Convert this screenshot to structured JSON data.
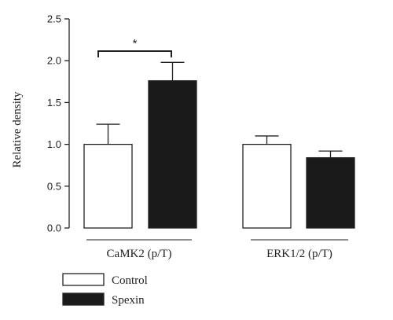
{
  "chart_data": {
    "type": "bar",
    "categories": [
      "CaMK2 (p/T)",
      "ERK1/2 (p/T)"
    ],
    "series": [
      {
        "name": "Control",
        "values": [
          1.0,
          1.0
        ],
        "errors": [
          0.24,
          0.1
        ],
        "color": "#ffffff"
      },
      {
        "name": "Spexin",
        "values": [
          1.76,
          0.84
        ],
        "errors": [
          0.22,
          0.08
        ],
        "color": "#1a1a1a"
      }
    ],
    "xlabel": "",
    "ylabel": "Relative density",
    "ylim": [
      0,
      2.5
    ],
    "yticks": [
      "0.0",
      "0.5",
      "1.0",
      "1.5",
      "2.0",
      "2.5"
    ],
    "grid": false,
    "legend": "bottom-left",
    "annotations": [
      {
        "text": "*",
        "between": [
          "Control",
          "Spexin"
        ],
        "category": "CaMK2 (p/T)"
      }
    ]
  }
}
